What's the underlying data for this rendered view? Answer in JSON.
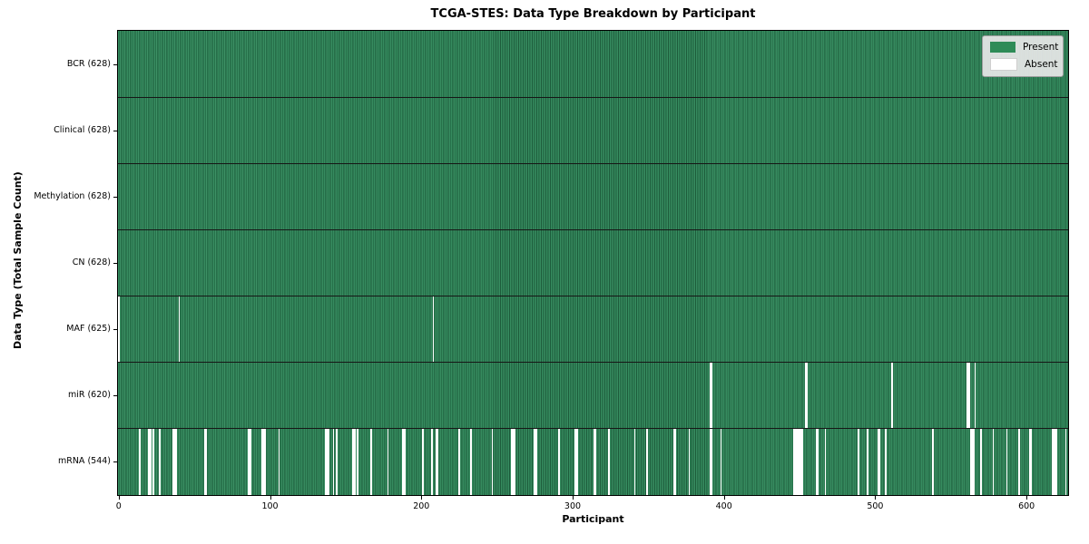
{
  "chart_data": {
    "type": "heatmap",
    "title": "TCGA-STES: Data Type Breakdown by Participant",
    "xlabel": "Participant",
    "ylabel": "Data Type (Total Sample Count)",
    "n_participants": 628,
    "x_ticks": [
      0,
      100,
      200,
      300,
      400,
      500,
      600
    ],
    "legend": [
      {
        "label": "Present",
        "color": "#2e8b57"
      },
      {
        "label": "Absent",
        "color": "#ffffff"
      }
    ],
    "colors": {
      "present": "#2e8b57",
      "absent": "#ffffff",
      "grid": "#161616"
    },
    "legend_position": "upper right",
    "rows": [
      {
        "label": "BCR (628)",
        "present_count": 628,
        "absent_participants": []
      },
      {
        "label": "Clinical (628)",
        "present_count": 628,
        "absent_participants": []
      },
      {
        "label": "Methylation (628)",
        "present_count": 628,
        "absent_participants": []
      },
      {
        "label": "CN (628)",
        "present_count": 628,
        "absent_participants": []
      },
      {
        "label": "MAF (625)",
        "present_count": 625,
        "absent_participants": [
          0,
          40,
          208
        ]
      },
      {
        "label": "miR (620)",
        "present_count": 620,
        "absent_participants": [
          391,
          392,
          454,
          455,
          511,
          561,
          562,
          566
        ]
      },
      {
        "label": "mRNA (544)",
        "present_count": 544,
        "absent_participants": [
          14,
          20,
          21,
          23,
          27,
          36,
          37,
          38,
          57,
          58,
          86,
          87,
          95,
          96,
          97,
          106,
          137,
          138,
          139,
          142,
          144,
          155,
          156,
          158,
          167,
          178,
          188,
          189,
          201,
          207,
          210,
          211,
          225,
          233,
          247,
          260,
          261,
          262,
          275,
          276,
          291,
          302,
          303,
          314,
          315,
          324,
          341,
          349,
          367,
          368,
          377,
          391,
          392,
          398,
          446,
          447,
          448,
          449,
          450,
          451,
          452,
          461,
          462,
          467,
          489,
          495,
          502,
          503,
          507,
          538,
          563,
          564,
          565,
          570,
          578,
          587,
          595,
          602,
          603,
          617,
          618,
          619,
          620,
          626
        ]
      }
    ]
  }
}
